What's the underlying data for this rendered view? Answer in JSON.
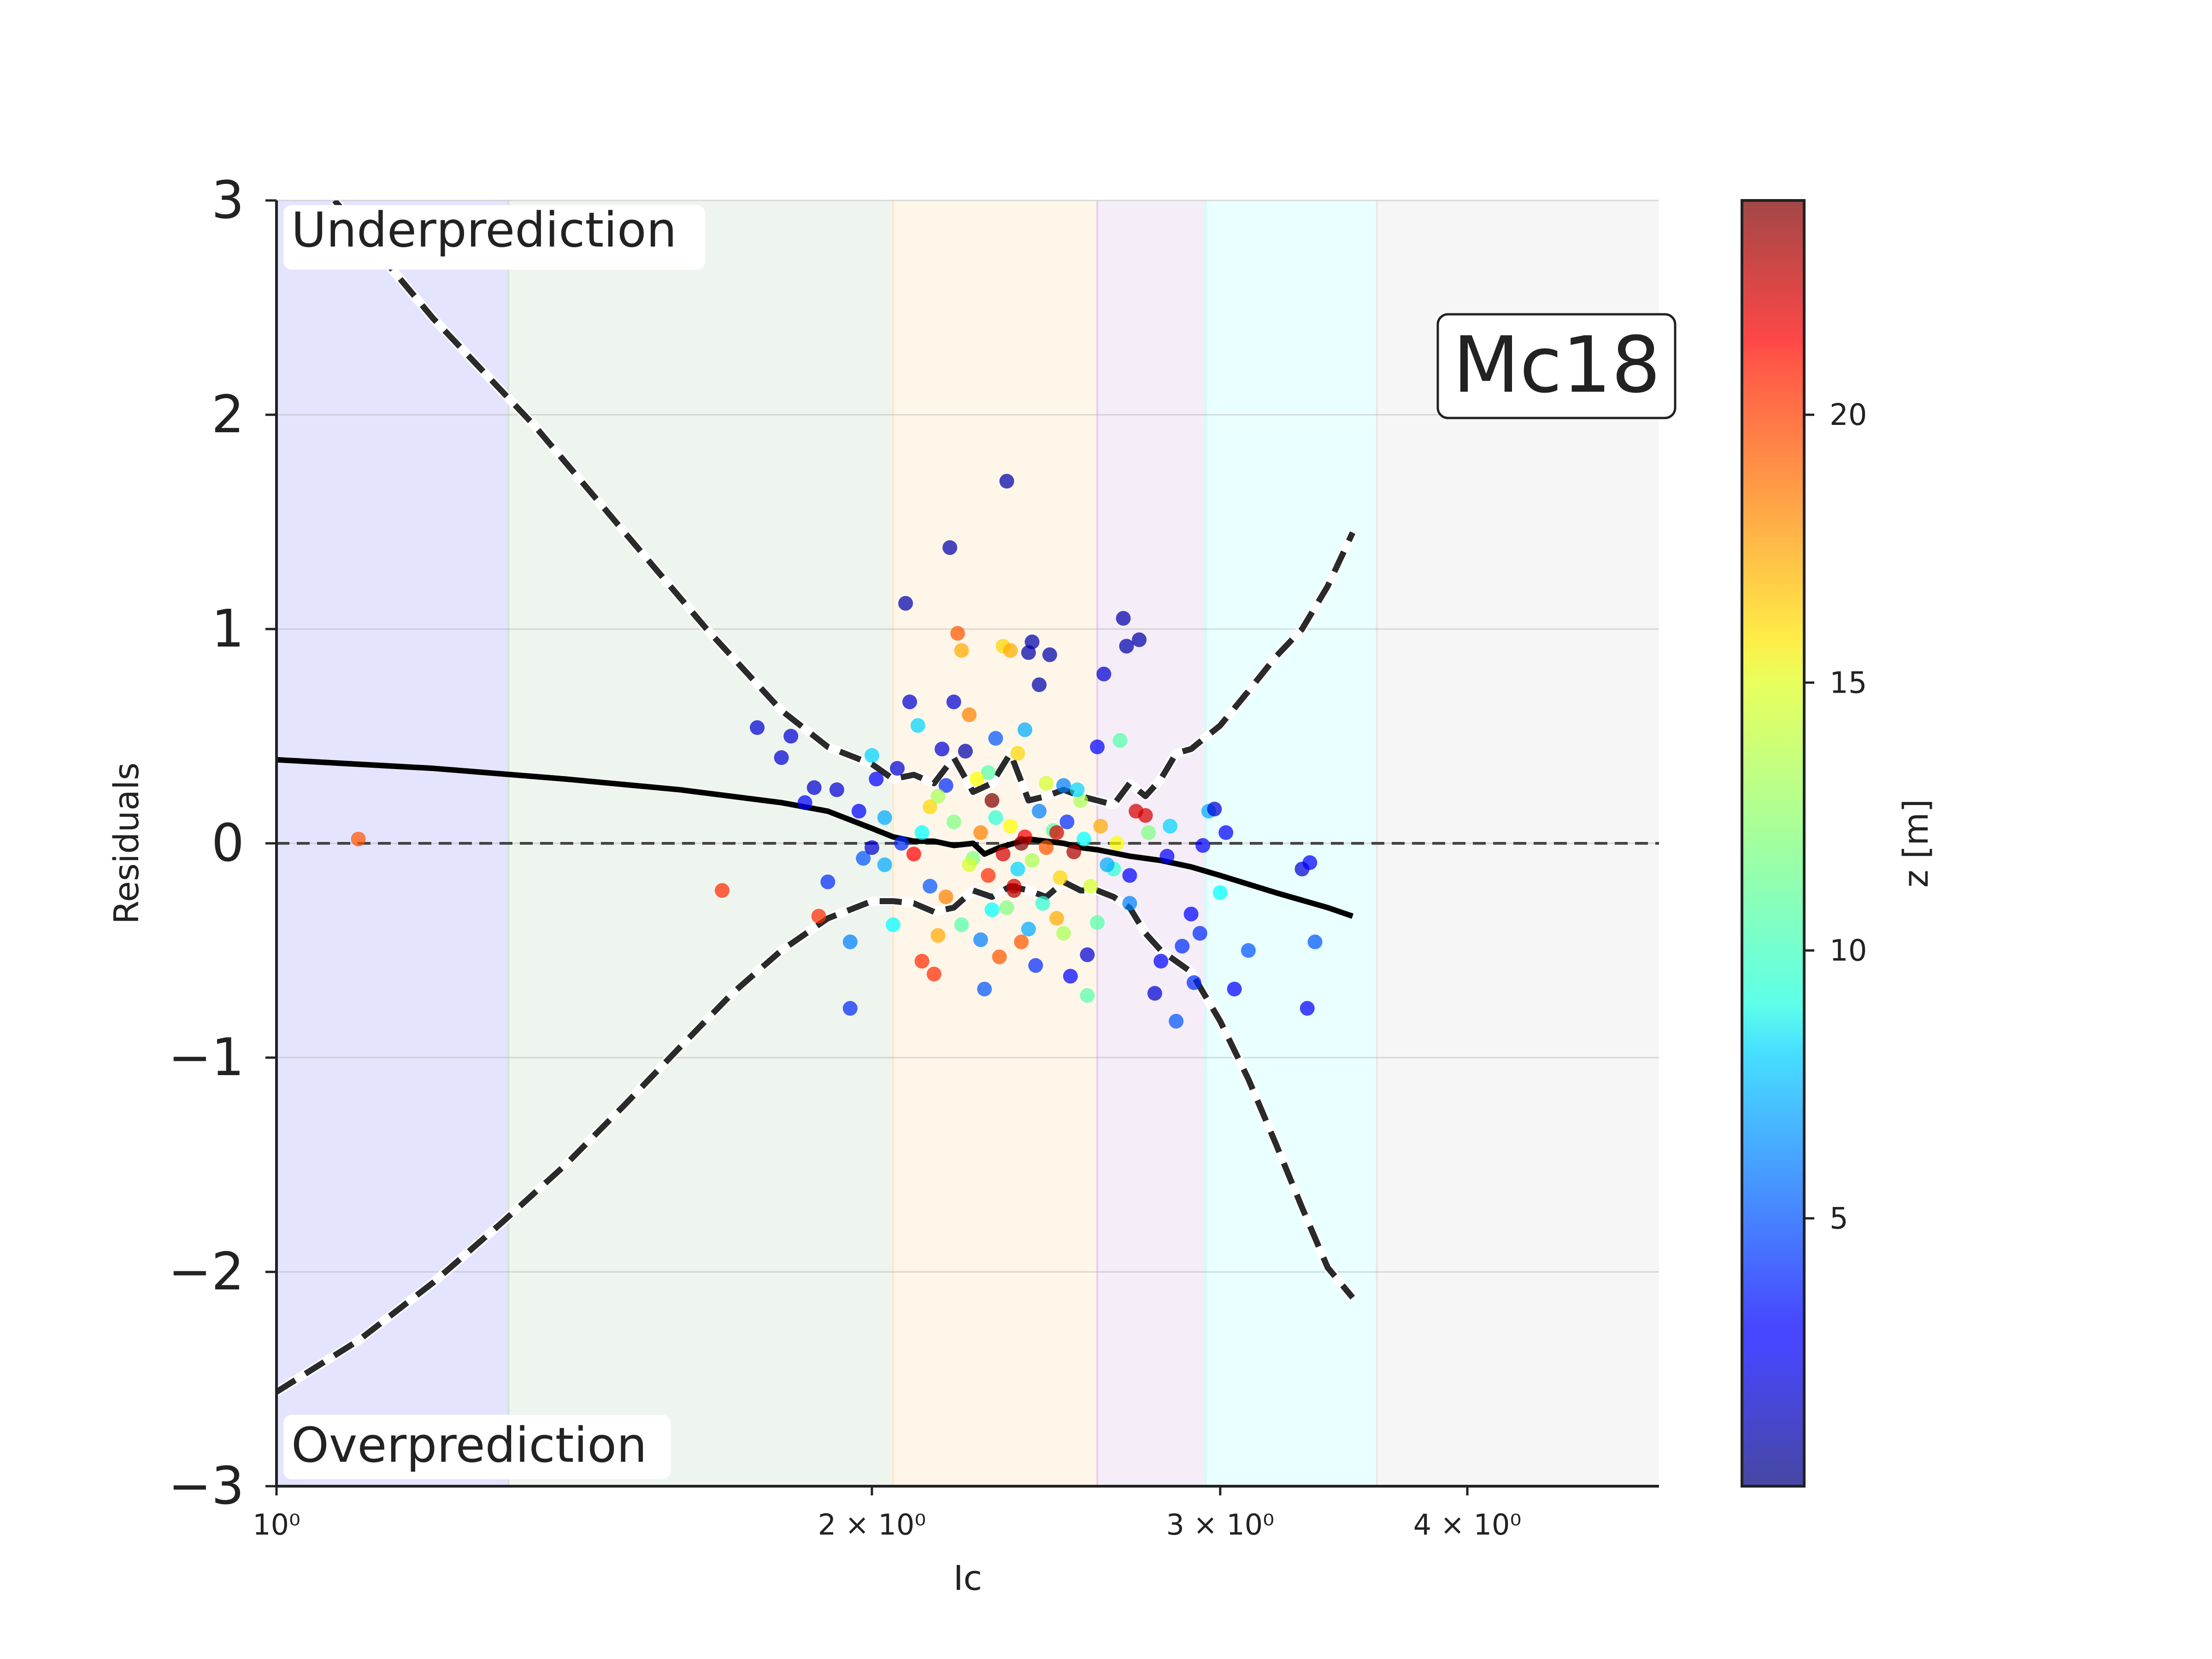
{
  "chart_data": {
    "type": "scatter",
    "title": "",
    "model_label": "Mc18",
    "xlabel": "Ic",
    "ylabel": "Residuals",
    "xscale": "log",
    "xlim": [
      1.0,
      5.0
    ],
    "ylim": [
      -3,
      3
    ],
    "x_tick_labels": [
      {
        "value": 1,
        "label": "10⁰"
      },
      {
        "value": 2,
        "label": "2 × 10⁰"
      },
      {
        "value": 3,
        "label": "3 × 10⁰"
      },
      {
        "value": 4,
        "label": "4 × 10⁰"
      }
    ],
    "y_ticks": [
      {
        "value": 3,
        "label": "3"
      },
      {
        "value": 2,
        "label": "2"
      },
      {
        "value": 1,
        "label": "1"
      },
      {
        "value": 0,
        "label": "0"
      },
      {
        "value": -1,
        "label": "−1"
      },
      {
        "value": -2,
        "label": "−2"
      },
      {
        "value": -3,
        "label": "−3"
      }
    ],
    "grid": true,
    "annotations": {
      "top": "Underprediction",
      "bottom": "Overprediction"
    },
    "zones": [
      {
        "x0": 1.0,
        "x1": 1.31,
        "color": "#b3b3ff"
      },
      {
        "x0": 1.31,
        "x1": 2.05,
        "color": "#cfe3cf"
      },
      {
        "x0": 2.05,
        "x1": 2.6,
        "color": "#ffe6c2"
      },
      {
        "x0": 2.6,
        "x1": 2.95,
        "color": "#e3cce8"
      },
      {
        "x0": 2.95,
        "x1": 3.6,
        "color": "#c2ffff"
      },
      {
        "x0": 3.6,
        "x1": 5.0,
        "color": "#e6e6e6"
      }
    ],
    "colorbar": {
      "label": "z [m]",
      "min": 0,
      "max": 24,
      "colormap": "jet",
      "ticks": [
        {
          "value": 5,
          "label": "5"
        },
        {
          "value": 10,
          "label": "10"
        },
        {
          "value": 15,
          "label": "15"
        },
        {
          "value": 20,
          "label": "20"
        }
      ]
    },
    "zero_line": {
      "y": 0,
      "style": "dashed"
    },
    "trend_line": {
      "x": [
        1.0,
        1.2,
        1.4,
        1.6,
        1.8,
        1.9,
        2.0,
        2.05,
        2.1,
        2.15,
        2.2,
        2.25,
        2.28,
        2.32,
        2.36,
        2.4,
        2.45,
        2.5,
        2.55,
        2.6,
        2.7,
        2.8,
        2.9,
        3.0,
        3.2,
        3.4,
        3.5
      ],
      "y": [
        0.39,
        0.35,
        0.3,
        0.25,
        0.19,
        0.15,
        0.07,
        0.03,
        0.01,
        0.01,
        -0.01,
        0.0,
        -0.05,
        -0.02,
        0.0,
        0.02,
        0.01,
        0.0,
        -0.02,
        -0.03,
        -0.06,
        -0.08,
        -0.11,
        -0.15,
        -0.23,
        -0.3,
        -0.34
      ]
    },
    "upper_bound": {
      "x": [
        1.07,
        1.2,
        1.35,
        1.5,
        1.65,
        1.8,
        1.9,
        2.0,
        2.05,
        2.1,
        2.15,
        2.2,
        2.25,
        2.3,
        2.35,
        2.4,
        2.45,
        2.5,
        2.55,
        2.6,
        2.65,
        2.7,
        2.75,
        2.8,
        2.85,
        2.9,
        3.0,
        3.1,
        3.2,
        3.3,
        3.4,
        3.5
      ],
      "y": [
        3.0,
        2.45,
        1.95,
        1.45,
        1.0,
        0.62,
        0.45,
        0.37,
        0.3,
        0.32,
        0.28,
        0.4,
        0.24,
        0.28,
        0.42,
        0.2,
        0.22,
        0.25,
        0.22,
        0.2,
        0.18,
        0.28,
        0.22,
        0.3,
        0.42,
        0.44,
        0.55,
        0.71,
        0.87,
        1.0,
        1.2,
        1.45
      ]
    },
    "lower_bound": {
      "x": [
        1.0,
        1.1,
        1.2,
        1.3,
        1.4,
        1.5,
        1.6,
        1.7,
        1.8,
        1.9,
        2.0,
        2.05,
        2.1,
        2.15,
        2.2,
        2.25,
        2.3,
        2.35,
        2.4,
        2.45,
        2.5,
        2.55,
        2.6,
        2.65,
        2.7,
        2.75,
        2.8,
        2.9,
        3.0,
        3.1,
        3.2,
        3.3,
        3.4,
        3.5
      ],
      "y": [
        -2.56,
        -2.32,
        -2.05,
        -1.77,
        -1.5,
        -1.22,
        -0.95,
        -0.7,
        -0.5,
        -0.35,
        -0.27,
        -0.27,
        -0.28,
        -0.32,
        -0.3,
        -0.22,
        -0.25,
        -0.2,
        -0.22,
        -0.25,
        -0.18,
        -0.22,
        -0.22,
        -0.25,
        -0.3,
        -0.42,
        -0.5,
        -0.6,
        -0.83,
        -1.1,
        -1.4,
        -1.7,
        -1.98,
        -2.12
      ]
    },
    "points": [
      {
        "x": 1.1,
        "y": 0.02,
        "z": 19
      },
      {
        "x": 1.68,
        "y": -0.22,
        "z": 20
      },
      {
        "x": 1.75,
        "y": 0.54,
        "z": 2
      },
      {
        "x": 1.8,
        "y": 0.4,
        "z": 2
      },
      {
        "x": 1.82,
        "y": 0.5,
        "z": 2
      },
      {
        "x": 1.85,
        "y": 0.19,
        "z": 3
      },
      {
        "x": 1.87,
        "y": 0.26,
        "z": 2
      },
      {
        "x": 1.88,
        "y": -0.34,
        "z": 20
      },
      {
        "x": 1.9,
        "y": -0.18,
        "z": 4
      },
      {
        "x": 1.92,
        "y": 0.25,
        "z": 2
      },
      {
        "x": 1.95,
        "y": -0.46,
        "z": 6
      },
      {
        "x": 1.95,
        "y": -0.77,
        "z": 4
      },
      {
        "x": 1.97,
        "y": 0.15,
        "z": 3
      },
      {
        "x": 1.98,
        "y": -0.07,
        "z": 5
      },
      {
        "x": 2.0,
        "y": 0.41,
        "z": 8
      },
      {
        "x": 2.01,
        "y": 0.3,
        "z": 3
      },
      {
        "x": 2.03,
        "y": -0.1,
        "z": 7
      },
      {
        "x": 2.05,
        "y": -0.38,
        "z": 9
      },
      {
        "x": 2.06,
        "y": 0.35,
        "z": 2
      },
      {
        "x": 2.08,
        "y": 1.12,
        "z": 1
      },
      {
        "x": 2.09,
        "y": 0.66,
        "z": 2
      },
      {
        "x": 2.1,
        "y": -0.05,
        "z": 21
      },
      {
        "x": 2.11,
        "y": 0.55,
        "z": 8
      },
      {
        "x": 2.12,
        "y": -0.55,
        "z": 20
      },
      {
        "x": 2.14,
        "y": 0.17,
        "z": 16
      },
      {
        "x": 2.15,
        "y": -0.61,
        "z": 20
      },
      {
        "x": 2.16,
        "y": -0.43,
        "z": 17
      },
      {
        "x": 2.17,
        "y": 0.44,
        "z": 2
      },
      {
        "x": 2.18,
        "y": 0.27,
        "z": 4
      },
      {
        "x": 2.19,
        "y": 1.38,
        "z": 1
      },
      {
        "x": 2.2,
        "y": 0.66,
        "z": 2
      },
      {
        "x": 2.21,
        "y": 0.98,
        "z": 19
      },
      {
        "x": 2.22,
        "y": 0.9,
        "z": 17
      },
      {
        "x": 2.23,
        "y": 0.43,
        "z": 1
      },
      {
        "x": 2.24,
        "y": 0.6,
        "z": 18
      },
      {
        "x": 2.25,
        "y": -0.07,
        "z": 12
      },
      {
        "x": 2.27,
        "y": -0.45,
        "z": 6
      },
      {
        "x": 2.28,
        "y": -0.68,
        "z": 5
      },
      {
        "x": 2.29,
        "y": 0.33,
        "z": 11
      },
      {
        "x": 2.3,
        "y": -0.31,
        "z": 9
      },
      {
        "x": 2.31,
        "y": 0.49,
        "z": 5
      },
      {
        "x": 2.32,
        "y": -0.53,
        "z": 19
      },
      {
        "x": 2.33,
        "y": 0.92,
        "z": 16
      },
      {
        "x": 2.34,
        "y": 1.69,
        "z": 1
      },
      {
        "x": 2.35,
        "y": 0.9,
        "z": 17
      },
      {
        "x": 2.36,
        "y": -0.2,
        "z": 22
      },
      {
        "x": 2.37,
        "y": 0.42,
        "z": 16
      },
      {
        "x": 2.38,
        "y": -0.46,
        "z": 19
      },
      {
        "x": 2.39,
        "y": 0.53,
        "z": 7
      },
      {
        "x": 2.4,
        "y": 0.89,
        "z": 1
      },
      {
        "x": 2.41,
        "y": 0.94,
        "z": 1
      },
      {
        "x": 2.42,
        "y": -0.57,
        "z": 4
      },
      {
        "x": 2.43,
        "y": 0.74,
        "z": 1
      },
      {
        "x": 2.45,
        "y": 0.28,
        "z": 14
      },
      {
        "x": 2.46,
        "y": 0.88,
        "z": 1
      },
      {
        "x": 2.48,
        "y": -0.35,
        "z": 17
      },
      {
        "x": 2.5,
        "y": 0.27,
        "z": 6
      },
      {
        "x": 2.52,
        "y": -0.62,
        "z": 3
      },
      {
        "x": 2.55,
        "y": 0.2,
        "z": 13
      },
      {
        "x": 2.57,
        "y": -0.52,
        "z": 2
      },
      {
        "x": 2.6,
        "y": 0.45,
        "z": 3
      },
      {
        "x": 2.62,
        "y": 0.79,
        "z": 2
      },
      {
        "x": 2.65,
        "y": -0.12,
        "z": 10
      },
      {
        "x": 2.67,
        "y": 0.48,
        "z": 11
      },
      {
        "x": 2.68,
        "y": 1.05,
        "z": 1
      },
      {
        "x": 2.69,
        "y": 0.92,
        "z": 1
      },
      {
        "x": 2.7,
        "y": -0.28,
        "z": 6
      },
      {
        "x": 2.72,
        "y": 0.15,
        "z": 22
      },
      {
        "x": 2.73,
        "y": 0.95,
        "z": 1
      },
      {
        "x": 2.75,
        "y": 0.13,
        "z": 22
      },
      {
        "x": 2.78,
        "y": -0.7,
        "z": 2
      },
      {
        "x": 2.8,
        "y": -0.55,
        "z": 3
      },
      {
        "x": 2.82,
        "y": -0.06,
        "z": 3
      },
      {
        "x": 2.83,
        "y": 0.08,
        "z": 8
      },
      {
        "x": 2.85,
        "y": -0.83,
        "z": 5
      },
      {
        "x": 2.87,
        "y": -0.48,
        "z": 4
      },
      {
        "x": 2.9,
        "y": -0.33,
        "z": 3
      },
      {
        "x": 2.91,
        "y": -0.65,
        "z": 4
      },
      {
        "x": 2.93,
        "y": -0.42,
        "z": 4
      },
      {
        "x": 2.94,
        "y": -0.01,
        "z": 3
      },
      {
        "x": 2.96,
        "y": 0.15,
        "z": 7
      },
      {
        "x": 2.98,
        "y": 0.16,
        "z": 2
      },
      {
        "x": 3.0,
        "y": -0.23,
        "z": 9
      },
      {
        "x": 3.02,
        "y": 0.05,
        "z": 3
      },
      {
        "x": 3.05,
        "y": -0.68,
        "z": 3
      },
      {
        "x": 3.1,
        "y": -0.5,
        "z": 5
      },
      {
        "x": 3.3,
        "y": -0.12,
        "z": 2
      },
      {
        "x": 3.33,
        "y": -0.09,
        "z": 3
      },
      {
        "x": 3.32,
        "y": -0.77,
        "z": 3
      },
      {
        "x": 3.35,
        "y": -0.46,
        "z": 5
      },
      {
        "x": 2.2,
        "y": 0.1,
        "z": 12
      },
      {
        "x": 2.24,
        "y": -0.1,
        "z": 14
      },
      {
        "x": 2.27,
        "y": 0.05,
        "z": 18
      },
      {
        "x": 2.29,
        "y": -0.15,
        "z": 20
      },
      {
        "x": 2.31,
        "y": 0.12,
        "z": 10
      },
      {
        "x": 2.33,
        "y": -0.05,
        "z": 22
      },
      {
        "x": 2.35,
        "y": 0.08,
        "z": 15
      },
      {
        "x": 2.37,
        "y": -0.12,
        "z": 8
      },
      {
        "x": 2.39,
        "y": 0.03,
        "z": 21
      },
      {
        "x": 2.41,
        "y": -0.08,
        "z": 13
      },
      {
        "x": 2.43,
        "y": 0.15,
        "z": 6
      },
      {
        "x": 2.45,
        "y": -0.02,
        "z": 19
      },
      {
        "x": 2.47,
        "y": 0.06,
        "z": 11
      },
      {
        "x": 2.49,
        "y": -0.16,
        "z": 16
      },
      {
        "x": 2.51,
        "y": 0.1,
        "z": 4
      },
      {
        "x": 2.53,
        "y": -0.04,
        "z": 23
      },
      {
        "x": 2.56,
        "y": 0.02,
        "z": 9
      },
      {
        "x": 2.58,
        "y": -0.2,
        "z": 14
      },
      {
        "x": 2.61,
        "y": 0.08,
        "z": 17
      },
      {
        "x": 2.63,
        "y": -0.1,
        "z": 7
      },
      {
        "x": 2.12,
        "y": 0.05,
        "z": 9
      },
      {
        "x": 2.14,
        "y": -0.2,
        "z": 5
      },
      {
        "x": 2.16,
        "y": 0.22,
        "z": 13
      },
      {
        "x": 2.18,
        "y": -0.25,
        "z": 18
      },
      {
        "x": 2.07,
        "y": 0.0,
        "z": 4
      },
      {
        "x": 2.03,
        "y": 0.12,
        "z": 7
      },
      {
        "x": 2.0,
        "y": -0.02,
        "z": 2
      },
      {
        "x": 2.26,
        "y": 0.3,
        "z": 15
      },
      {
        "x": 2.34,
        "y": -0.3,
        "z": 12
      },
      {
        "x": 2.44,
        "y": -0.28,
        "z": 10
      },
      {
        "x": 2.54,
        "y": 0.25,
        "z": 8
      },
      {
        "x": 2.66,
        "y": 0.0,
        "z": 15
      },
      {
        "x": 2.7,
        "y": -0.15,
        "z": 3
      },
      {
        "x": 2.76,
        "y": 0.05,
        "z": 12
      },
      {
        "x": 2.22,
        "y": -0.38,
        "z": 11
      },
      {
        "x": 2.4,
        "y": -0.4,
        "z": 7
      },
      {
        "x": 2.5,
        "y": -0.42,
        "z": 13
      },
      {
        "x": 2.6,
        "y": -0.37,
        "z": 11
      },
      {
        "x": 2.57,
        "y": -0.71,
        "z": 11
      },
      {
        "x": 2.3,
        "y": 0.2,
        "z": 24
      },
      {
        "x": 2.38,
        "y": 0.0,
        "z": 24
      },
      {
        "x": 2.48,
        "y": 0.05,
        "z": 22
      },
      {
        "x": 2.36,
        "y": -0.22,
        "z": 23
      }
    ]
  }
}
